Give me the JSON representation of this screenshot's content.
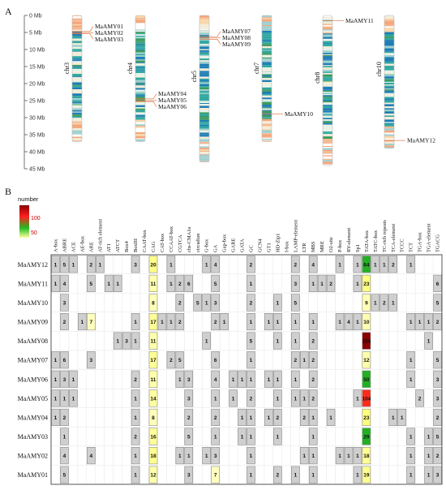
{
  "panelA": {
    "label": "A",
    "y_axis": {
      "ticks": [
        "0 Mb",
        "5 Mb",
        "10 Mb",
        "15 Mb",
        "20 Mb",
        "25 Mb",
        "30 Mb",
        "35 Mb",
        "40 Mb",
        "45 Mb"
      ],
      "max_mb": 45
    },
    "chromosomes": [
      {
        "name": "chr3",
        "length_mb": 37,
        "genes": [
          {
            "name": "MaAMY01",
            "pos_mb": 4.7
          },
          {
            "name": "MaAMY02",
            "pos_mb": 5.1
          },
          {
            "name": "MaAMY03",
            "pos_mb": 5.4
          }
        ]
      },
      {
        "name": "chr4",
        "length_mb": 37,
        "genes": [
          {
            "name": "MaAMY04",
            "pos_mb": 24.5
          },
          {
            "name": "MaAMY05",
            "pos_mb": 25.0
          },
          {
            "name": "MaAMY06",
            "pos_mb": 25.3
          }
        ]
      },
      {
        "name": "chr5",
        "length_mb": 43,
        "genes": [
          {
            "name": "MaAMY07",
            "pos_mb": 6.2
          },
          {
            "name": "MaAMY08",
            "pos_mb": 6.6
          },
          {
            "name": "MaAMY09",
            "pos_mb": 7.0
          }
        ]
      },
      {
        "name": "chr7",
        "length_mb": 37,
        "genes": [
          {
            "name": "MaAMY10",
            "pos_mb": 28.9
          }
        ]
      },
      {
        "name": "chr8",
        "length_mb": 44,
        "genes": [
          {
            "name": "MaAMY11",
            "pos_mb": 1.5
          }
        ]
      },
      {
        "name": "chr10",
        "length_mb": 39,
        "genes": [
          {
            "name": "MaAMY12",
            "pos_mb": 36.7
          }
        ]
      }
    ]
  },
  "panelB": {
    "label": "B",
    "legend": {
      "title": "number",
      "ticks": [
        "100",
        "50"
      ],
      "max": 164,
      "min": 1
    },
    "colors": {
      "zero": "#ffffff",
      "low": "#cfcfcf",
      "grid": "#e6e6e6",
      "border": "#555555"
    },
    "columns": [
      "A-box",
      "ABRE",
      "ACE",
      "AE-box",
      "ARE",
      "AT-rich element",
      "AT1",
      "ATCT",
      "Box4",
      "BoxIII",
      "CAAT-box",
      "CAG",
      "CAT-box",
      "CCAAT-box",
      "CGTCA",
      "chs-CMA1a",
      "circadian",
      "G-box",
      "GA",
      "Gap-box",
      "GARE",
      "GATA",
      "GC",
      "GCN4",
      "GT1",
      "HD-Zip1",
      "I-box",
      "LAMP-element",
      "LTR",
      "MBS",
      "MRE",
      "O2-site",
      "P-box",
      "RY-element",
      "Sp1",
      "TATA-box",
      "TATC-box",
      "TC-rich repeats",
      "TCA-element",
      "TCCC",
      "TCT",
      "TGA-box",
      "TGA-element",
      "TGACG"
    ],
    "rows": [
      {
        "name": "MaAMY12",
        "values": [
          1,
          5,
          1,
          0,
          2,
          1,
          0,
          0,
          0,
          3,
          0,
          20,
          0,
          1,
          0,
          0,
          0,
          1,
          4,
          0,
          0,
          0,
          2,
          0,
          0,
          0,
          0,
          2,
          0,
          4,
          0,
          0,
          1,
          0,
          1,
          64,
          1,
          1,
          2,
          0,
          1,
          0,
          0,
          0
        ]
      },
      {
        "name": "MaAMY11",
        "values": [
          1,
          4,
          0,
          0,
          5,
          0,
          1,
          1,
          0,
          0,
          0,
          11,
          0,
          1,
          2,
          6,
          0,
          0,
          5,
          0,
          0,
          0,
          1,
          0,
          0,
          0,
          0,
          3,
          0,
          1,
          1,
          2,
          0,
          0,
          1,
          23,
          0,
          0,
          0,
          0,
          0,
          0,
          0,
          6
        ]
      },
      {
        "name": "MaAMY10",
        "values": [
          0,
          3,
          0,
          0,
          0,
          0,
          0,
          0,
          0,
          0,
          0,
          8,
          0,
          0,
          2,
          0,
          5,
          1,
          3,
          0,
          0,
          0,
          2,
          0,
          0,
          1,
          0,
          5,
          0,
          0,
          0,
          0,
          0,
          0,
          0,
          9,
          1,
          2,
          1,
          0,
          0,
          0,
          0,
          5
        ]
      },
      {
        "name": "MaAMY09",
        "values": [
          0,
          2,
          0,
          1,
          7,
          0,
          0,
          0,
          0,
          1,
          0,
          17,
          1,
          1,
          2,
          0,
          0,
          0,
          2,
          1,
          0,
          0,
          1,
          0,
          1,
          1,
          0,
          1,
          0,
          1,
          0,
          0,
          1,
          4,
          1,
          10,
          0,
          0,
          0,
          0,
          1,
          1,
          1,
          2
        ]
      },
      {
        "name": "MaAMY08",
        "values": [
          0,
          0,
          0,
          0,
          0,
          0,
          0,
          1,
          3,
          1,
          0,
          11,
          0,
          0,
          0,
          0,
          0,
          1,
          0,
          0,
          0,
          0,
          5,
          0,
          0,
          1,
          0,
          1,
          0,
          2,
          0,
          0,
          0,
          0,
          0,
          164,
          0,
          0,
          0,
          0,
          0,
          0,
          1,
          0
        ]
      },
      {
        "name": "MaAMY07",
        "values": [
          1,
          6,
          0,
          0,
          3,
          0,
          0,
          0,
          0,
          0,
          0,
          17,
          0,
          2,
          5,
          0,
          0,
          0,
          6,
          0,
          0,
          0,
          1,
          0,
          0,
          0,
          0,
          2,
          1,
          2,
          0,
          0,
          0,
          0,
          0,
          12,
          0,
          0,
          0,
          0,
          1,
          0,
          0,
          5
        ]
      },
      {
        "name": "MaAMY06",
        "values": [
          1,
          3,
          1,
          0,
          0,
          0,
          0,
          0,
          0,
          2,
          0,
          11,
          0,
          0,
          1,
          3,
          0,
          0,
          4,
          0,
          1,
          1,
          1,
          0,
          1,
          1,
          0,
          1,
          0,
          2,
          0,
          0,
          0,
          0,
          0,
          50,
          0,
          0,
          0,
          0,
          1,
          0,
          0,
          3
        ]
      },
      {
        "name": "MaAMY05",
        "values": [
          1,
          1,
          1,
          0,
          0,
          0,
          0,
          0,
          0,
          1,
          0,
          14,
          0,
          0,
          0,
          3,
          0,
          0,
          1,
          0,
          1,
          0,
          2,
          0,
          0,
          1,
          0,
          1,
          1,
          2,
          0,
          0,
          0,
          0,
          1,
          104,
          0,
          0,
          0,
          0,
          0,
          2,
          0,
          3
        ]
      },
      {
        "name": "MaAMY04",
        "values": [
          1,
          2,
          0,
          0,
          0,
          0,
          0,
          0,
          0,
          1,
          0,
          8,
          0,
          0,
          0,
          2,
          0,
          0,
          2,
          0,
          0,
          1,
          1,
          0,
          1,
          2,
          0,
          0,
          2,
          1,
          0,
          1,
          0,
          0,
          0,
          23,
          0,
          0,
          1,
          1,
          0,
          0,
          0,
          2
        ]
      },
      {
        "name": "MaAMY03",
        "values": [
          0,
          1,
          0,
          0,
          0,
          0,
          0,
          0,
          0,
          2,
          0,
          16,
          0,
          0,
          0,
          5,
          0,
          0,
          1,
          0,
          0,
          1,
          1,
          0,
          0,
          1,
          0,
          0,
          0,
          1,
          0,
          0,
          0,
          0,
          0,
          29,
          0,
          0,
          0,
          0,
          1,
          0,
          1,
          5
        ]
      },
      {
        "name": "MaAMY02",
        "values": [
          0,
          4,
          0,
          0,
          4,
          0,
          0,
          0,
          0,
          1,
          0,
          18,
          0,
          0,
          1,
          1,
          0,
          1,
          3,
          0,
          0,
          0,
          1,
          0,
          0,
          0,
          0,
          0,
          1,
          1,
          0,
          0,
          1,
          1,
          1,
          18,
          0,
          0,
          0,
          0,
          1,
          0,
          1,
          2
        ]
      },
      {
        "name": "MaAMY01",
        "values": [
          0,
          5,
          0,
          0,
          0,
          0,
          0,
          0,
          0,
          1,
          0,
          12,
          0,
          0,
          0,
          3,
          0,
          0,
          7,
          0,
          0,
          0,
          1,
          0,
          0,
          2,
          0,
          1,
          0,
          1,
          0,
          0,
          0,
          0,
          1,
          19,
          0,
          0,
          0,
          0,
          1,
          0,
          1,
          3
        ]
      }
    ]
  }
}
